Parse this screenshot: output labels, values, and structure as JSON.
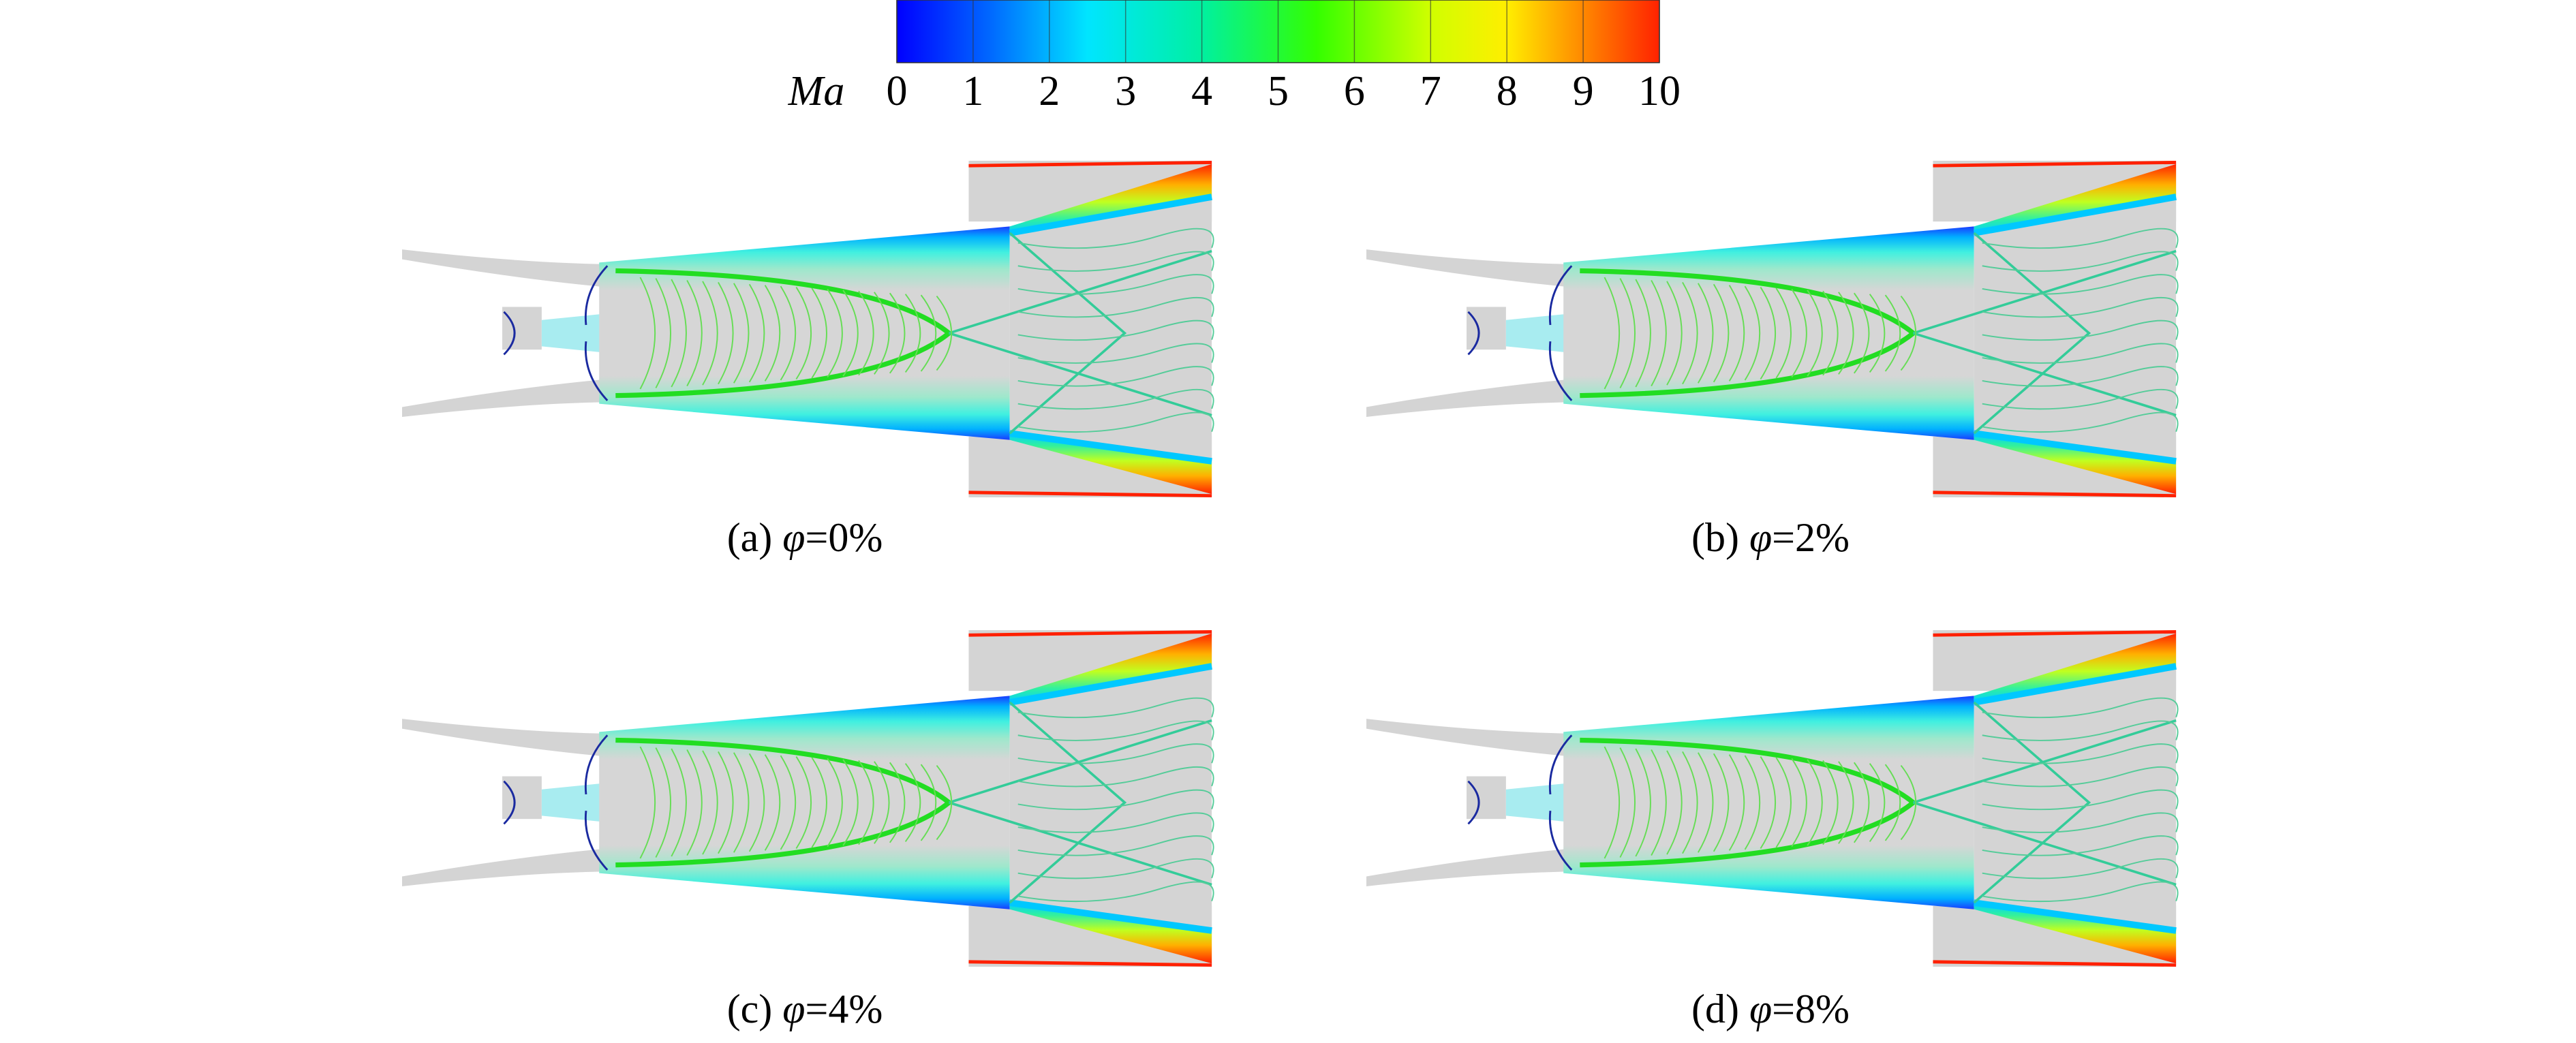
{
  "chart_data": {
    "type": "contour",
    "colorbar": {
      "label": "Ma",
      "lim": [
        0,
        10
      ],
      "ticks": [
        0,
        1,
        2,
        3,
        4,
        5,
        6,
        7,
        8,
        9,
        10
      ],
      "colormap": "jet"
    },
    "panels": [
      {
        "tag": "(a)",
        "symbol": "φ",
        "value": "=0%"
      },
      {
        "tag": "(b)",
        "symbol": "φ",
        "value": "=2%"
      },
      {
        "tag": "(c)",
        "symbol": "φ",
        "value": "=4%"
      },
      {
        "tag": "(d)",
        "symbol": "φ",
        "value": "=8%"
      }
    ]
  }
}
